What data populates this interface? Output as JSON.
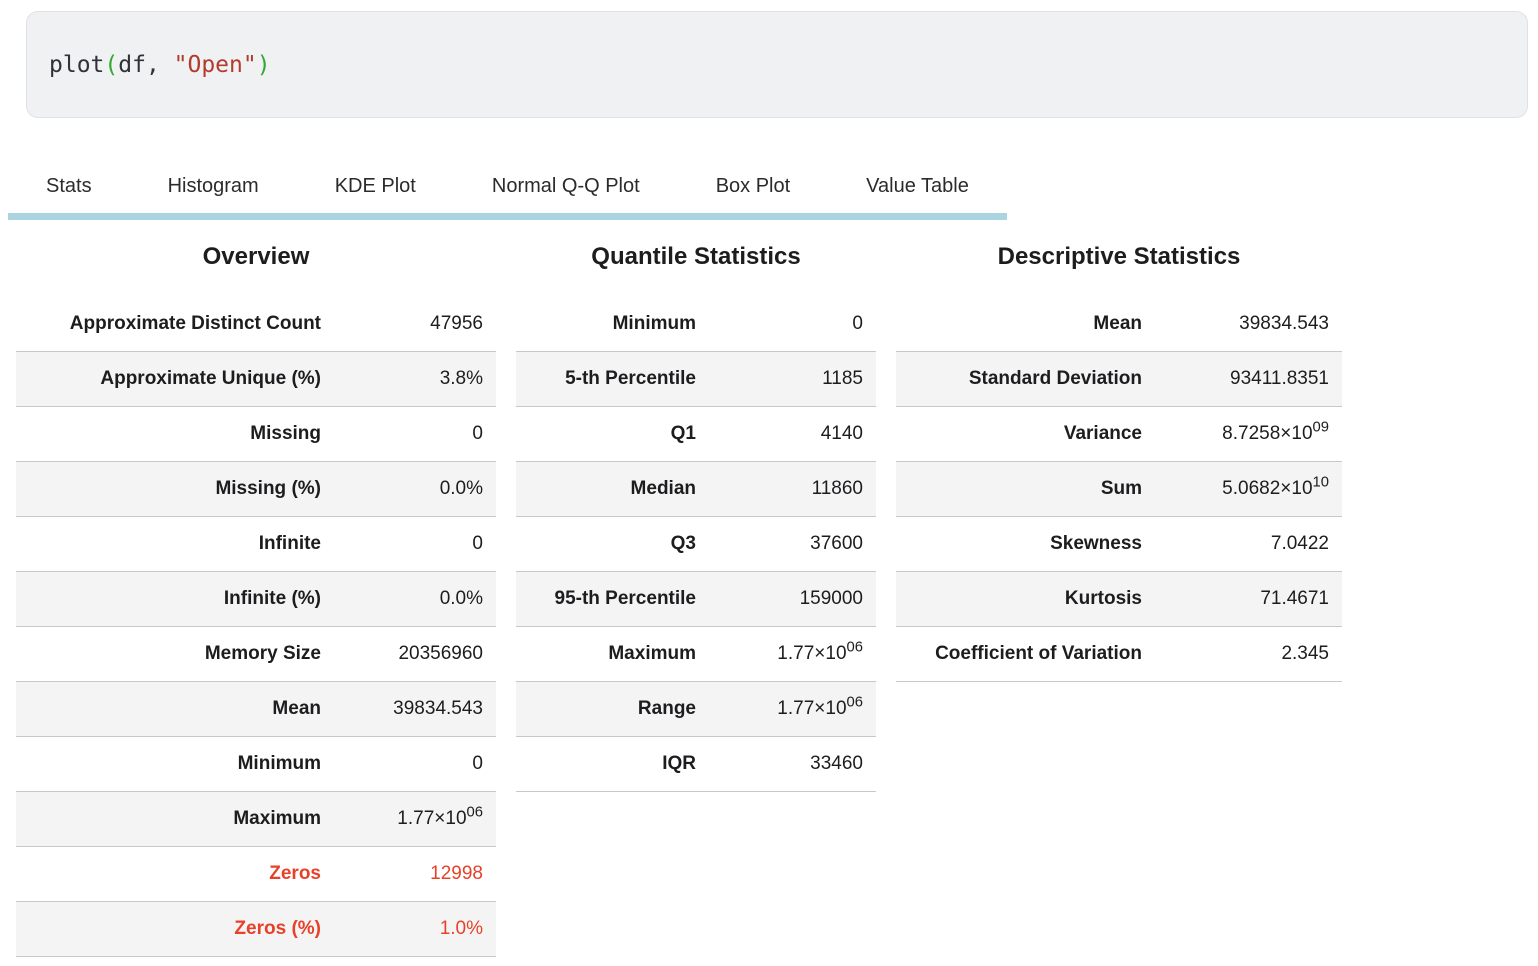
{
  "code_cell": {
    "tokens": [
      {
        "text": "plot",
        "style": "plain"
      },
      {
        "text": "(",
        "style": "paren"
      },
      {
        "text": "df, ",
        "style": "plain"
      },
      {
        "text": "\"Open\"",
        "style": "string"
      },
      {
        "text": ")",
        "style": "paren"
      }
    ]
  },
  "tabs": [
    {
      "id": "stats",
      "label": "Stats"
    },
    {
      "id": "histogram",
      "label": "Histogram"
    },
    {
      "id": "kde-plot",
      "label": "KDE Plot"
    },
    {
      "id": "normal-qq-plot",
      "label": "Normal Q-Q Plot"
    },
    {
      "id": "box-plot",
      "label": "Box Plot"
    },
    {
      "id": "value-table",
      "label": "Value Table"
    }
  ],
  "colors": {
    "accent_red": "#e74228",
    "tab_underline": "#aad4e0",
    "row_stripe": "#f4f4f5",
    "code_paren_green": "#36a832",
    "code_string_red": "#b23b2d"
  },
  "panels": [
    {
      "title": "Overview",
      "rows": [
        {
          "label": "Approximate Distinct Count",
          "value": "47956"
        },
        {
          "label": "Approximate Unique (%)",
          "value": "3.8%"
        },
        {
          "label": "Missing",
          "value": "0"
        },
        {
          "label": "Missing (%)",
          "value": "0.0%"
        },
        {
          "label": "Infinite",
          "value": "0"
        },
        {
          "label": "Infinite (%)",
          "value": "0.0%"
        },
        {
          "label": "Memory Size",
          "value": "20356960"
        },
        {
          "label": "Mean",
          "value": "39834.543"
        },
        {
          "label": "Minimum",
          "value": "0"
        },
        {
          "label": "Maximum",
          "value": "1.77×10",
          "sup": "06"
        },
        {
          "label": "Zeros",
          "value": "12998",
          "red": true
        },
        {
          "label": "Zeros (%)",
          "value": "1.0%",
          "red": true
        }
      ]
    },
    {
      "title": "Quantile Statistics",
      "rows": [
        {
          "label": "Minimum",
          "value": "0"
        },
        {
          "label": "5-th Percentile",
          "value": "1185"
        },
        {
          "label": "Q1",
          "value": "4140"
        },
        {
          "label": "Median",
          "value": "11860"
        },
        {
          "label": "Q3",
          "value": "37600"
        },
        {
          "label": "95-th Percentile",
          "value": "159000"
        },
        {
          "label": "Maximum",
          "value": "1.77×10",
          "sup": "06"
        },
        {
          "label": "Range",
          "value": "1.77×10",
          "sup": "06"
        },
        {
          "label": "IQR",
          "value": "33460"
        }
      ]
    },
    {
      "title": "Descriptive Statistics",
      "rows": [
        {
          "label": "Mean",
          "value": "39834.543"
        },
        {
          "label": "Standard Deviation",
          "value": "93411.8351"
        },
        {
          "label": "Variance",
          "value": "8.7258×10",
          "sup": "09"
        },
        {
          "label": "Sum",
          "value": "5.0682×10",
          "sup": "10"
        },
        {
          "label": "Skewness",
          "value": "7.0422"
        },
        {
          "label": "Kurtosis",
          "value": "71.4671"
        },
        {
          "label": "Coefficient of Variation",
          "value": "2.345"
        }
      ]
    }
  ]
}
